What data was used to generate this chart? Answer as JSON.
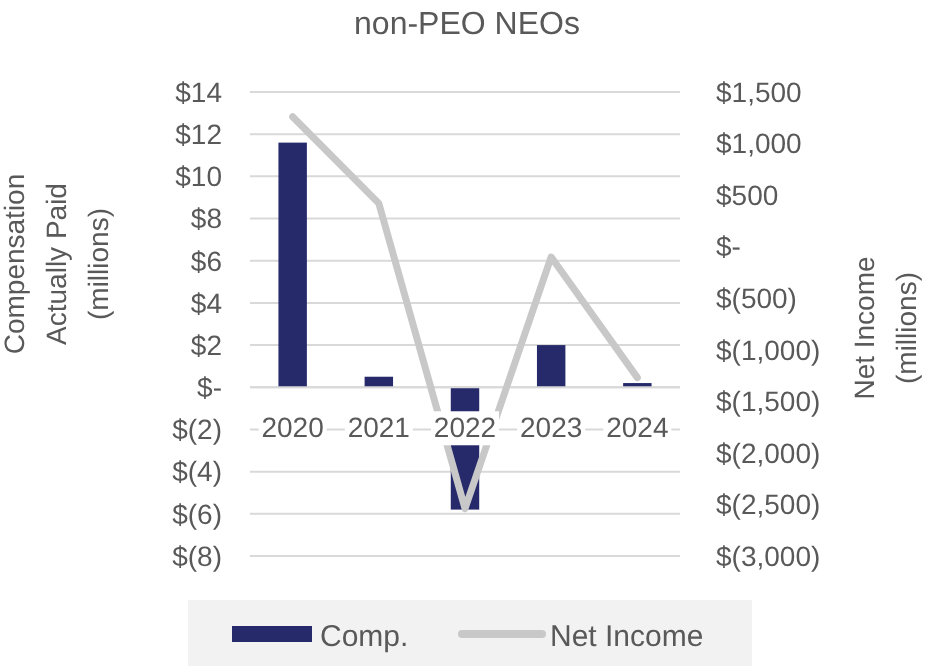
{
  "chart_data": {
    "type": "bar",
    "title": "non-PEO NEOs",
    "ylabel": "Compensation Actually Paid (millions)",
    "y2label": "Net Income (millions)",
    "categories": [
      "2020",
      "2021",
      "2022",
      "2023",
      "2024"
    ],
    "series": [
      {
        "name": "Comp.",
        "color": "#262a6b",
        "values": [
          11.6,
          0.5,
          -5.8,
          2,
          0.2
        ]
      },
      {
        "name": "Net Income",
        "type": "line",
        "axis": "y2",
        "color": "#c8c8c8",
        "values": [
          1260,
          420,
          -2540,
          -100,
          -1270
        ]
      }
    ],
    "ylim": [
      -8,
      14
    ],
    "yticks": [
      {
        "value": -8,
        "label": "$(8)"
      },
      {
        "value": -6,
        "label": "$(6)"
      },
      {
        "value": -4,
        "label": "$(4)"
      },
      {
        "value": -2,
        "label": "$(2)"
      },
      {
        "value": 0,
        "label": "$-"
      },
      {
        "value": 2,
        "label": "$2"
      },
      {
        "value": 4,
        "label": "$4"
      },
      {
        "value": 6,
        "label": "$6"
      },
      {
        "value": 8,
        "label": "$8"
      },
      {
        "value": 10,
        "label": "$10"
      },
      {
        "value": 12,
        "label": "$12"
      },
      {
        "value": 14,
        "label": "$14"
      }
    ],
    "y2lim": [
      -3000,
      1500
    ],
    "y2ticks": [
      {
        "value": -3000,
        "label": "$(3,000)"
      },
      {
        "value": -2500,
        "label": "$(2,500)"
      },
      {
        "value": -2000,
        "label": "$(2,000)"
      },
      {
        "value": -1500,
        "label": "$(1,500)"
      },
      {
        "value": -1000,
        "label": "$(1,000)"
      },
      {
        "value": -500,
        "label": "$(500)"
      },
      {
        "value": 0,
        "label": "$-"
      },
      {
        "value": 500,
        "label": "$500"
      },
      {
        "value": 1000,
        "label": "$1,000"
      },
      {
        "value": 1500,
        "label": "$1,500"
      }
    ],
    "grid": "y",
    "legend": "bottom"
  }
}
